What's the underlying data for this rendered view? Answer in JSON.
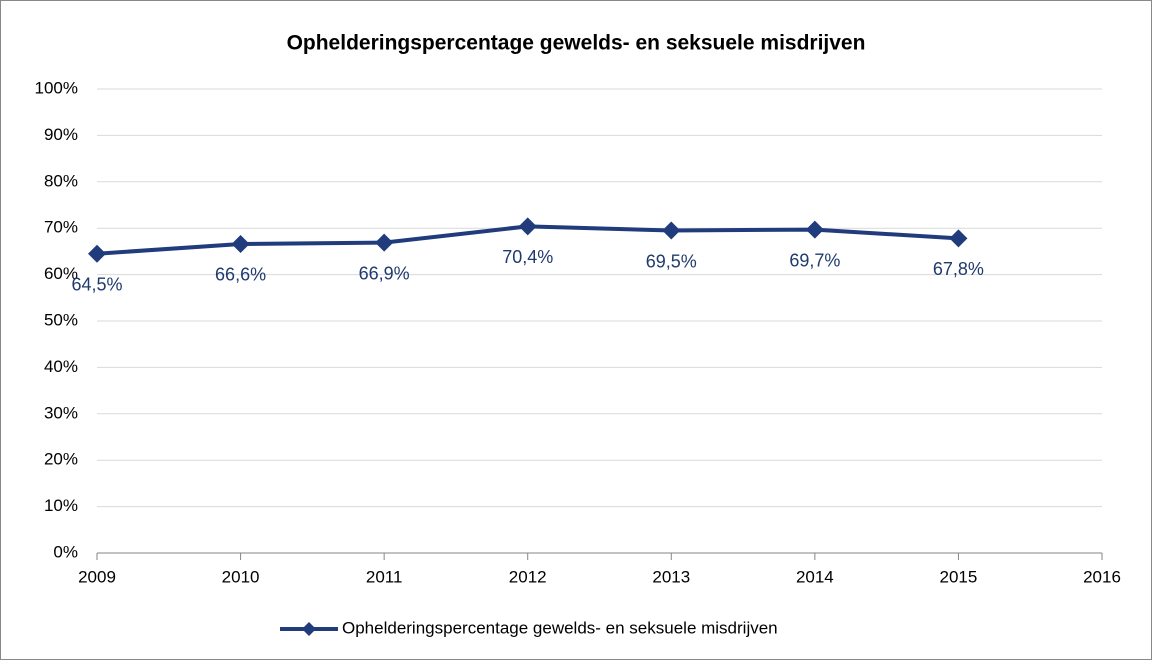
{
  "chart_data": {
    "type": "line",
    "title": "Ophelderingspercentage gewelds- en seksuele misdrijven",
    "x": [
      2009,
      2010,
      2011,
      2012,
      2013,
      2014,
      2015
    ],
    "series": [
      {
        "name": "Ophelderingspercentage gewelds- en seksuele misdrijven",
        "color": "#203c7c",
        "values": [
          64.5,
          66.6,
          66.9,
          70.4,
          69.5,
          69.7,
          67.8
        ],
        "value_labels": [
          "64,5%",
          "66,6%",
          "66,9%",
          "70,4%",
          "69,5%",
          "69,7%",
          "67,8%"
        ]
      }
    ],
    "xlim": [
      2009,
      2016
    ],
    "xticks": [
      2009,
      2010,
      2011,
      2012,
      2013,
      2014,
      2015,
      2016
    ],
    "ylim": [
      0,
      100
    ],
    "yticks": [
      {
        "value": 0,
        "label": "0%"
      },
      {
        "value": 10,
        "label": "10%"
      },
      {
        "value": 20,
        "label": "20%"
      },
      {
        "value": 30,
        "label": "30%"
      },
      {
        "value": 40,
        "label": "40%"
      },
      {
        "value": 50,
        "label": "50%"
      },
      {
        "value": 60,
        "label": "60%"
      },
      {
        "value": 70,
        "label": "70%"
      },
      {
        "value": 80,
        "label": "80%"
      },
      {
        "value": 90,
        "label": "90%"
      },
      {
        "value": 100,
        "label": "100%"
      }
    ],
    "grid": true,
    "legend": "bottom"
  }
}
